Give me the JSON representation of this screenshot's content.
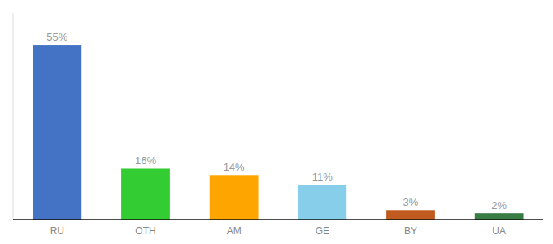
{
  "chart_data": {
    "type": "bar",
    "categories": [
      "RU",
      "OTH",
      "AM",
      "GE",
      "BY",
      "UA"
    ],
    "values": [
      55,
      16,
      14,
      11,
      3,
      2
    ],
    "value_labels": [
      "55%",
      "16%",
      "14%",
      "11%",
      "3%",
      "2%"
    ],
    "colors": [
      "#4472C4",
      "#33CC33",
      "#FFA500",
      "#87CEEB",
      "#C05A1F",
      "#3A7D44"
    ],
    "ylim": [
      0,
      65
    ],
    "data_labels": true,
    "tick_labels": "x",
    "grid": false
  }
}
